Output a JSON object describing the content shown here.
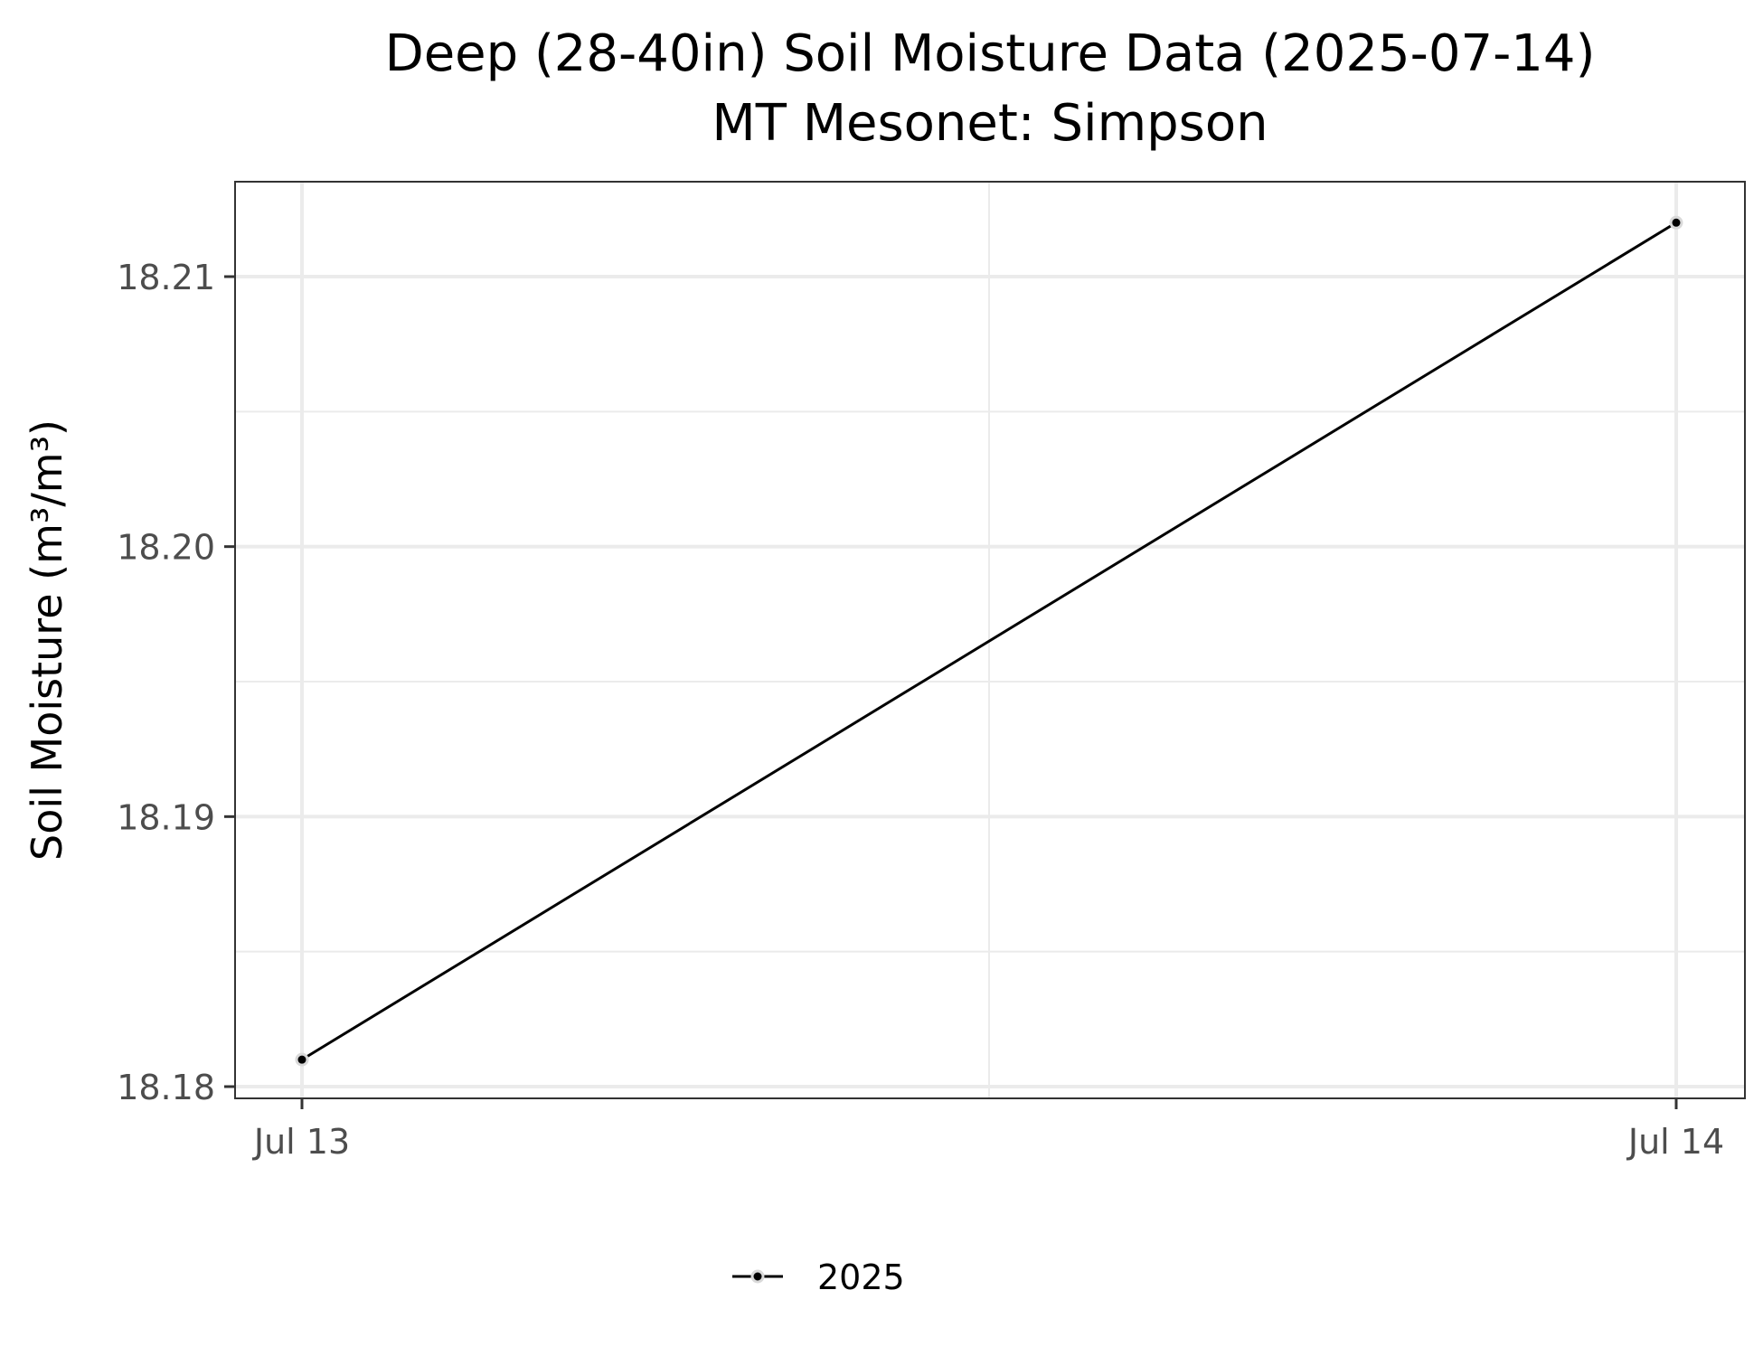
{
  "chart_data": {
    "type": "line",
    "title": "Deep (28-40in) Soil Moisture Data (2025-07-14)",
    "subtitle": "MT Mesonet: Simpson",
    "xlabel": "",
    "ylabel": "Soil Moisture (m³/m³)",
    "x": [
      "2025-07-13",
      "2025-07-14"
    ],
    "x_tick_labels": [
      "Jul 13",
      "Jul 14"
    ],
    "y_ticks": [
      18.18,
      18.19,
      18.2,
      18.21
    ],
    "y_tick_labels": [
      "18.18",
      "18.19",
      "18.20",
      "18.21"
    ],
    "ylim": [
      18.18,
      18.212
    ],
    "grid": true,
    "legend_position": "bottom",
    "series": [
      {
        "name": "2025",
        "values": [
          18.181,
          18.212
        ],
        "color": "#000000"
      }
    ]
  }
}
